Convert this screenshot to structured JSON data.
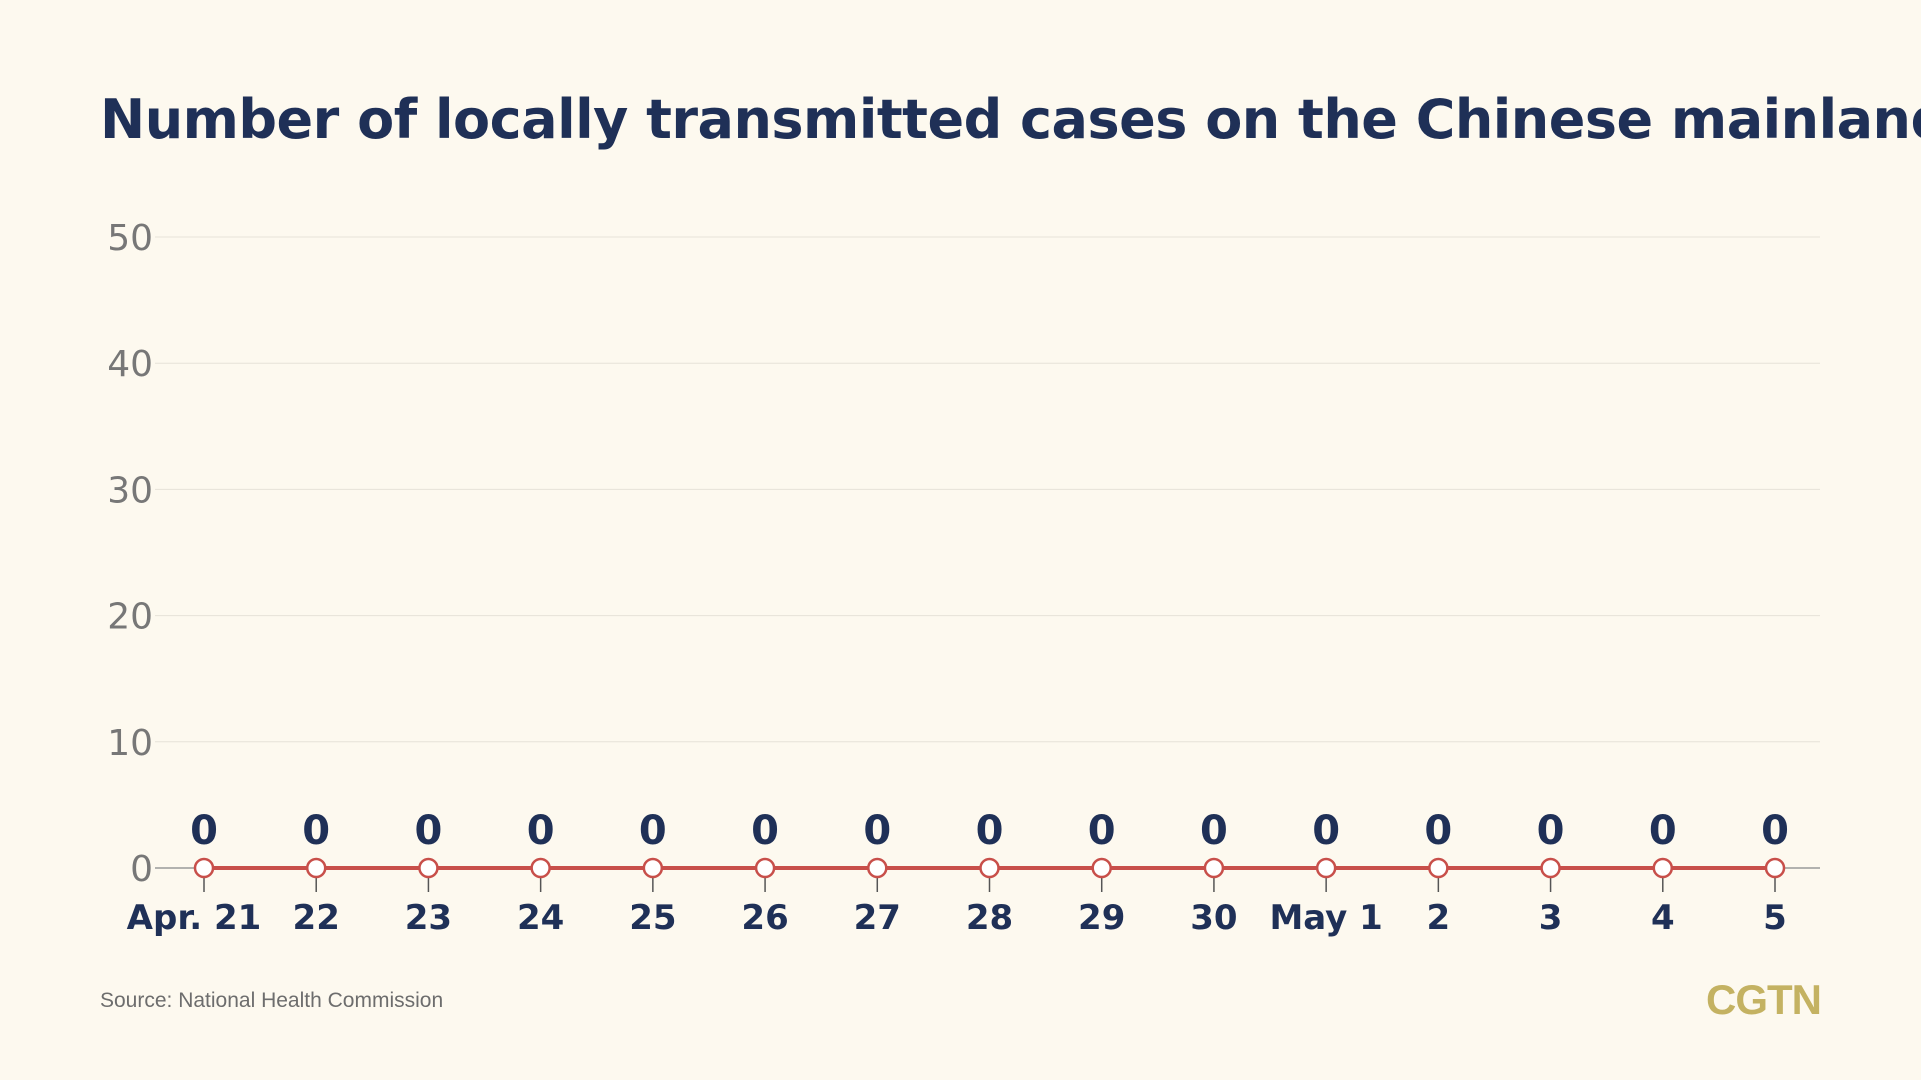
{
  "title": "Number of locally transmitted cases on the Chinese mainland",
  "source": "Source: National Health Commission",
  "logo": "CGTN",
  "colors": {
    "background": "#fdf9ef",
    "title": "#1f3057",
    "line": "#c84f4a",
    "grid": "#e6e2d8",
    "axis_tick_text": "#777777",
    "logo": "#c4b262"
  },
  "chart_data": {
    "type": "line",
    "title": "Number of locally transmitted cases on the Chinese mainland",
    "categories": [
      "Apr. 21",
      "22",
      "23",
      "24",
      "25",
      "26",
      "27",
      "28",
      "29",
      "30",
      "May 1",
      "2",
      "3",
      "4",
      "5"
    ],
    "series": [
      {
        "values": [
          0,
          0,
          0,
          0,
          0,
          0,
          0,
          0,
          0,
          0,
          0,
          0,
          0,
          0,
          0
        ]
      }
    ],
    "data_labels": [
      "0",
      "0",
      "0",
      "0",
      "0",
      "0",
      "0",
      "0",
      "0",
      "0",
      "0",
      "0",
      "0",
      "0",
      "0"
    ],
    "yticks": [
      0,
      10,
      20,
      30,
      40,
      50
    ],
    "ylim": [
      0,
      50
    ],
    "grid": true,
    "xlabel": "",
    "ylabel": ""
  }
}
